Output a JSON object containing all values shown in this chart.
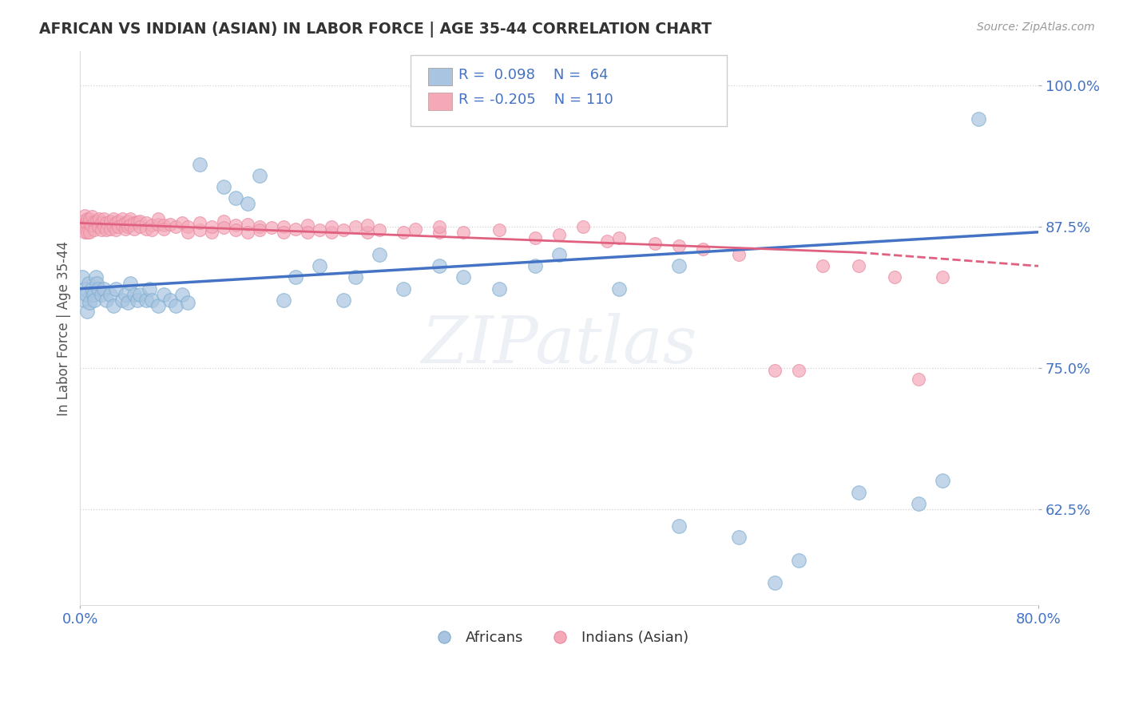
{
  "title": "AFRICAN VS INDIAN (ASIAN) IN LABOR FORCE | AGE 35-44 CORRELATION CHART",
  "source": "Source: ZipAtlas.com",
  "ylabel": "In Labor Force | Age 35-44",
  "xlim": [
    0.0,
    0.8
  ],
  "ylim": [
    0.54,
    1.03
  ],
  "yticks": [
    0.625,
    0.75,
    0.875,
    1.0
  ],
  "ytick_labels": [
    "62.5%",
    "75.0%",
    "87.5%",
    "100.0%"
  ],
  "xtick_labels": [
    "0.0%",
    "80.0%"
  ],
  "xticks": [
    0.0,
    0.8
  ],
  "r_african": 0.098,
  "n_african": 64,
  "r_indian": -0.205,
  "n_indian": 110,
  "african_color": "#a8c4e0",
  "indian_color": "#f4a8b8",
  "african_line_color": "#4472c4",
  "indian_line_color": "#e06080",
  "watermark": "ZIPatlas",
  "background_color": "#ffffff",
  "tick_color": "#4472c4",
  "african_scatter": [
    [
      0.002,
      0.83
    ],
    [
      0.003,
      0.81
    ],
    [
      0.004,
      0.82
    ],
    [
      0.005,
      0.815
    ],
    [
      0.006,
      0.8
    ],
    [
      0.007,
      0.825
    ],
    [
      0.008,
      0.808
    ],
    [
      0.01,
      0.82
    ],
    [
      0.011,
      0.815
    ],
    [
      0.012,
      0.81
    ],
    [
      0.013,
      0.83
    ],
    [
      0.014,
      0.825
    ],
    [
      0.015,
      0.82
    ],
    [
      0.018,
      0.815
    ],
    [
      0.02,
      0.82
    ],
    [
      0.022,
      0.81
    ],
    [
      0.025,
      0.815
    ],
    [
      0.028,
      0.805
    ],
    [
      0.03,
      0.82
    ],
    [
      0.035,
      0.81
    ],
    [
      0.038,
      0.815
    ],
    [
      0.04,
      0.808
    ],
    [
      0.042,
      0.825
    ],
    [
      0.045,
      0.815
    ],
    [
      0.048,
      0.81
    ],
    [
      0.05,
      0.815
    ],
    [
      0.055,
      0.81
    ],
    [
      0.058,
      0.82
    ],
    [
      0.06,
      0.81
    ],
    [
      0.065,
      0.805
    ],
    [
      0.07,
      0.815
    ],
    [
      0.075,
      0.81
    ],
    [
      0.08,
      0.805
    ],
    [
      0.085,
      0.815
    ],
    [
      0.09,
      0.808
    ],
    [
      0.1,
      0.93
    ],
    [
      0.12,
      0.91
    ],
    [
      0.13,
      0.9
    ],
    [
      0.14,
      0.895
    ],
    [
      0.15,
      0.92
    ],
    [
      0.17,
      0.81
    ],
    [
      0.18,
      0.83
    ],
    [
      0.2,
      0.84
    ],
    [
      0.22,
      0.81
    ],
    [
      0.23,
      0.83
    ],
    [
      0.25,
      0.85
    ],
    [
      0.27,
      0.82
    ],
    [
      0.3,
      0.84
    ],
    [
      0.32,
      0.83
    ],
    [
      0.35,
      0.82
    ],
    [
      0.38,
      0.84
    ],
    [
      0.4,
      0.85
    ],
    [
      0.45,
      0.82
    ],
    [
      0.5,
      0.61
    ],
    [
      0.5,
      0.84
    ],
    [
      0.55,
      0.6
    ],
    [
      0.58,
      0.56
    ],
    [
      0.6,
      0.58
    ],
    [
      0.65,
      0.64
    ],
    [
      0.7,
      0.63
    ],
    [
      0.72,
      0.65
    ],
    [
      0.75,
      0.97
    ]
  ],
  "indian_scatter": [
    [
      0.002,
      0.88
    ],
    [
      0.003,
      0.875
    ],
    [
      0.004,
      0.885
    ],
    [
      0.004,
      0.87
    ],
    [
      0.005,
      0.878
    ],
    [
      0.006,
      0.882
    ],
    [
      0.006,
      0.87
    ],
    [
      0.007,
      0.878
    ],
    [
      0.008,
      0.882
    ],
    [
      0.008,
      0.87
    ],
    [
      0.009,
      0.876
    ],
    [
      0.01,
      0.884
    ],
    [
      0.012,
      0.879
    ],
    [
      0.012,
      0.872
    ],
    [
      0.014,
      0.88
    ],
    [
      0.015,
      0.875
    ],
    [
      0.016,
      0.882
    ],
    [
      0.018,
      0.878
    ],
    [
      0.018,
      0.872
    ],
    [
      0.02,
      0.882
    ],
    [
      0.02,
      0.875
    ],
    [
      0.022,
      0.878
    ],
    [
      0.022,
      0.872
    ],
    [
      0.025,
      0.88
    ],
    [
      0.025,
      0.873
    ],
    [
      0.028,
      0.882
    ],
    [
      0.028,
      0.875
    ],
    [
      0.03,
      0.878
    ],
    [
      0.03,
      0.872
    ],
    [
      0.032,
      0.88
    ],
    [
      0.032,
      0.875
    ],
    [
      0.035,
      0.882
    ],
    [
      0.035,
      0.876
    ],
    [
      0.038,
      0.878
    ],
    [
      0.038,
      0.873
    ],
    [
      0.04,
      0.88
    ],
    [
      0.04,
      0.875
    ],
    [
      0.042,
      0.882
    ],
    [
      0.042,
      0.876
    ],
    [
      0.045,
      0.878
    ],
    [
      0.045,
      0.873
    ],
    [
      0.048,
      0.879
    ],
    [
      0.05,
      0.88
    ],
    [
      0.05,
      0.875
    ],
    [
      0.055,
      0.878
    ],
    [
      0.055,
      0.873
    ],
    [
      0.06,
      0.876
    ],
    [
      0.06,
      0.872
    ],
    [
      0.065,
      0.877
    ],
    [
      0.065,
      0.882
    ],
    [
      0.07,
      0.876
    ],
    [
      0.07,
      0.873
    ],
    [
      0.075,
      0.877
    ],
    [
      0.08,
      0.875
    ],
    [
      0.085,
      0.878
    ],
    [
      0.09,
      0.875
    ],
    [
      0.09,
      0.87
    ],
    [
      0.1,
      0.872
    ],
    [
      0.1,
      0.878
    ],
    [
      0.11,
      0.87
    ],
    [
      0.11,
      0.875
    ],
    [
      0.12,
      0.88
    ],
    [
      0.12,
      0.874
    ],
    [
      0.13,
      0.876
    ],
    [
      0.13,
      0.872
    ],
    [
      0.14,
      0.877
    ],
    [
      0.14,
      0.87
    ],
    [
      0.15,
      0.875
    ],
    [
      0.15,
      0.872
    ],
    [
      0.16,
      0.874
    ],
    [
      0.17,
      0.875
    ],
    [
      0.17,
      0.87
    ],
    [
      0.18,
      0.873
    ],
    [
      0.19,
      0.876
    ],
    [
      0.19,
      0.87
    ],
    [
      0.2,
      0.872
    ],
    [
      0.21,
      0.87
    ],
    [
      0.21,
      0.875
    ],
    [
      0.22,
      0.872
    ],
    [
      0.23,
      0.875
    ],
    [
      0.24,
      0.87
    ],
    [
      0.24,
      0.876
    ],
    [
      0.25,
      0.872
    ],
    [
      0.27,
      0.87
    ],
    [
      0.28,
      0.873
    ],
    [
      0.3,
      0.87
    ],
    [
      0.3,
      0.875
    ],
    [
      0.32,
      0.87
    ],
    [
      0.35,
      0.872
    ],
    [
      0.38,
      0.865
    ],
    [
      0.4,
      0.868
    ],
    [
      0.42,
      0.875
    ],
    [
      0.44,
      0.862
    ],
    [
      0.45,
      0.865
    ],
    [
      0.48,
      0.86
    ],
    [
      0.5,
      0.858
    ],
    [
      0.52,
      0.855
    ],
    [
      0.55,
      0.85
    ],
    [
      0.58,
      0.748
    ],
    [
      0.6,
      0.748
    ],
    [
      0.62,
      0.84
    ],
    [
      0.65,
      0.84
    ],
    [
      0.68,
      0.83
    ],
    [
      0.7,
      0.74
    ],
    [
      0.72,
      0.83
    ]
  ]
}
